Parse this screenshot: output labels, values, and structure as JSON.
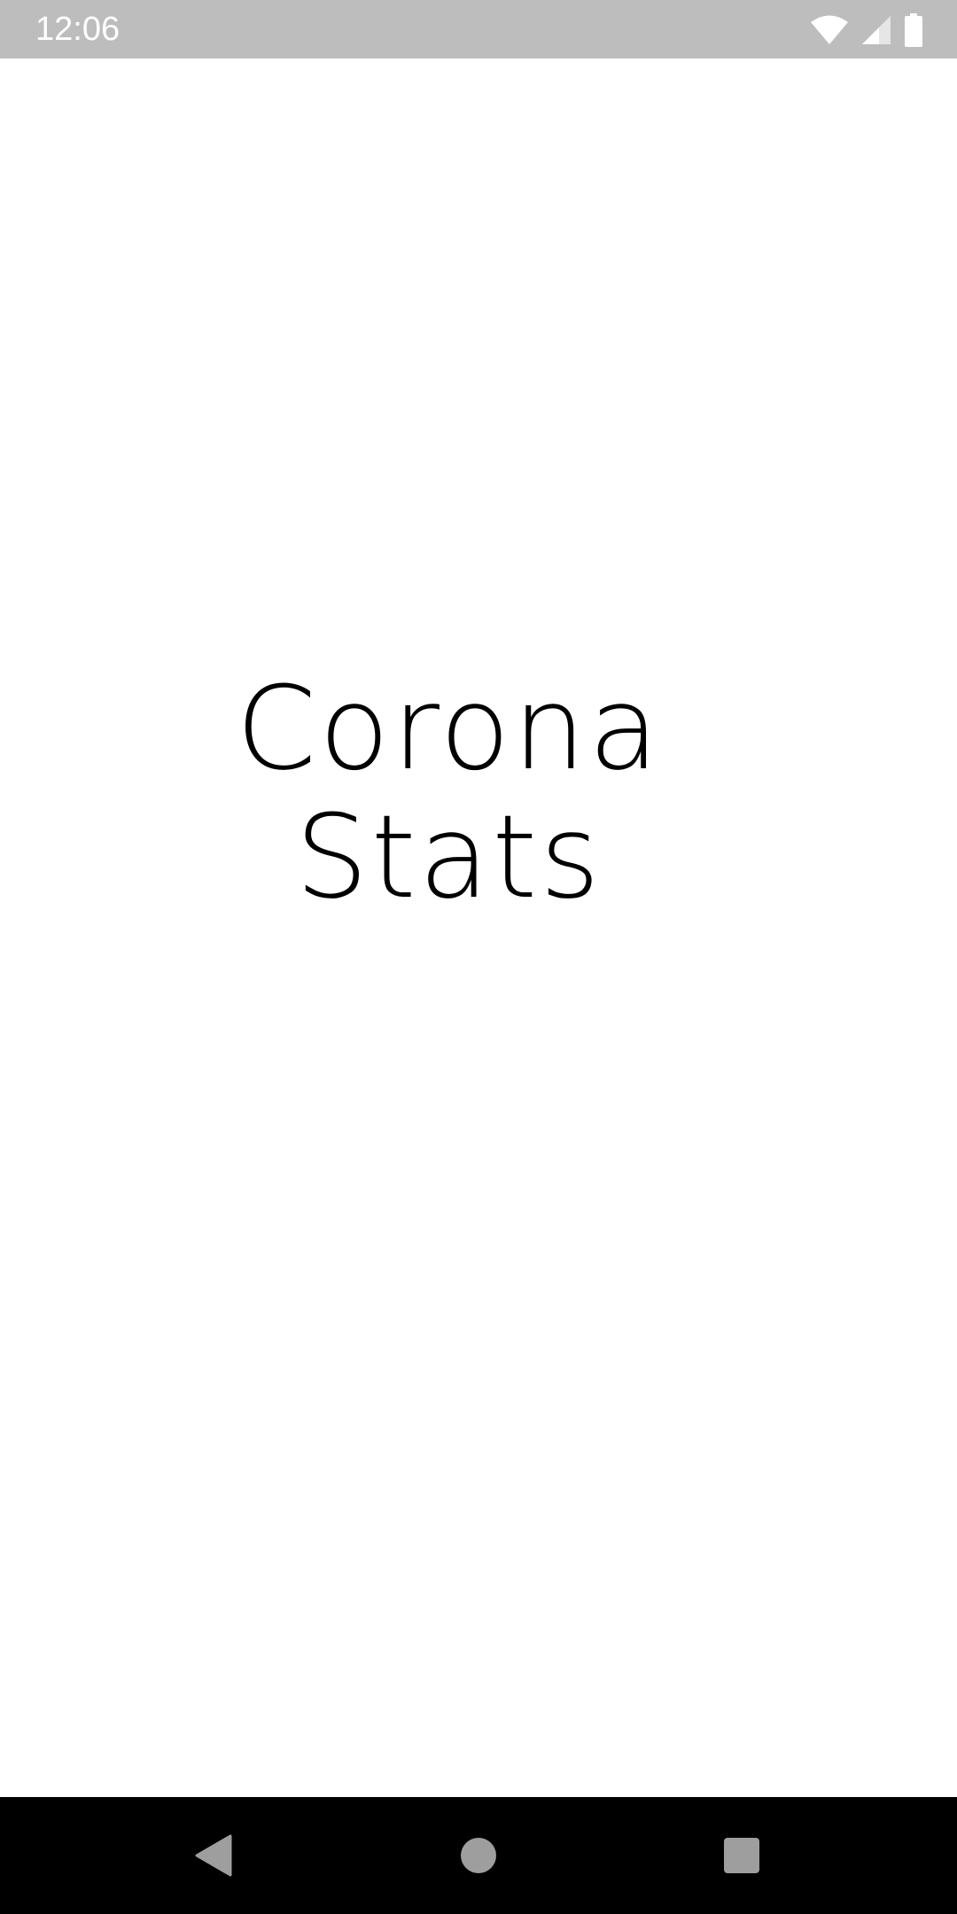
{
  "status_bar": {
    "time": "12:06",
    "icons": [
      "wifi-icon",
      "cell-signal-icon",
      "battery-icon"
    ]
  },
  "app": {
    "title_line1": "Corona",
    "title_line2": "Stats"
  },
  "nav_bar": {
    "buttons": [
      "back-icon",
      "home-icon",
      "recents-icon"
    ]
  },
  "colors": {
    "status_bar_bg": "#bdbdbd",
    "background": "#ffffff",
    "title_text": "#000000",
    "nav_bar_bg": "#000000",
    "nav_icon": "#9e9e9e"
  }
}
